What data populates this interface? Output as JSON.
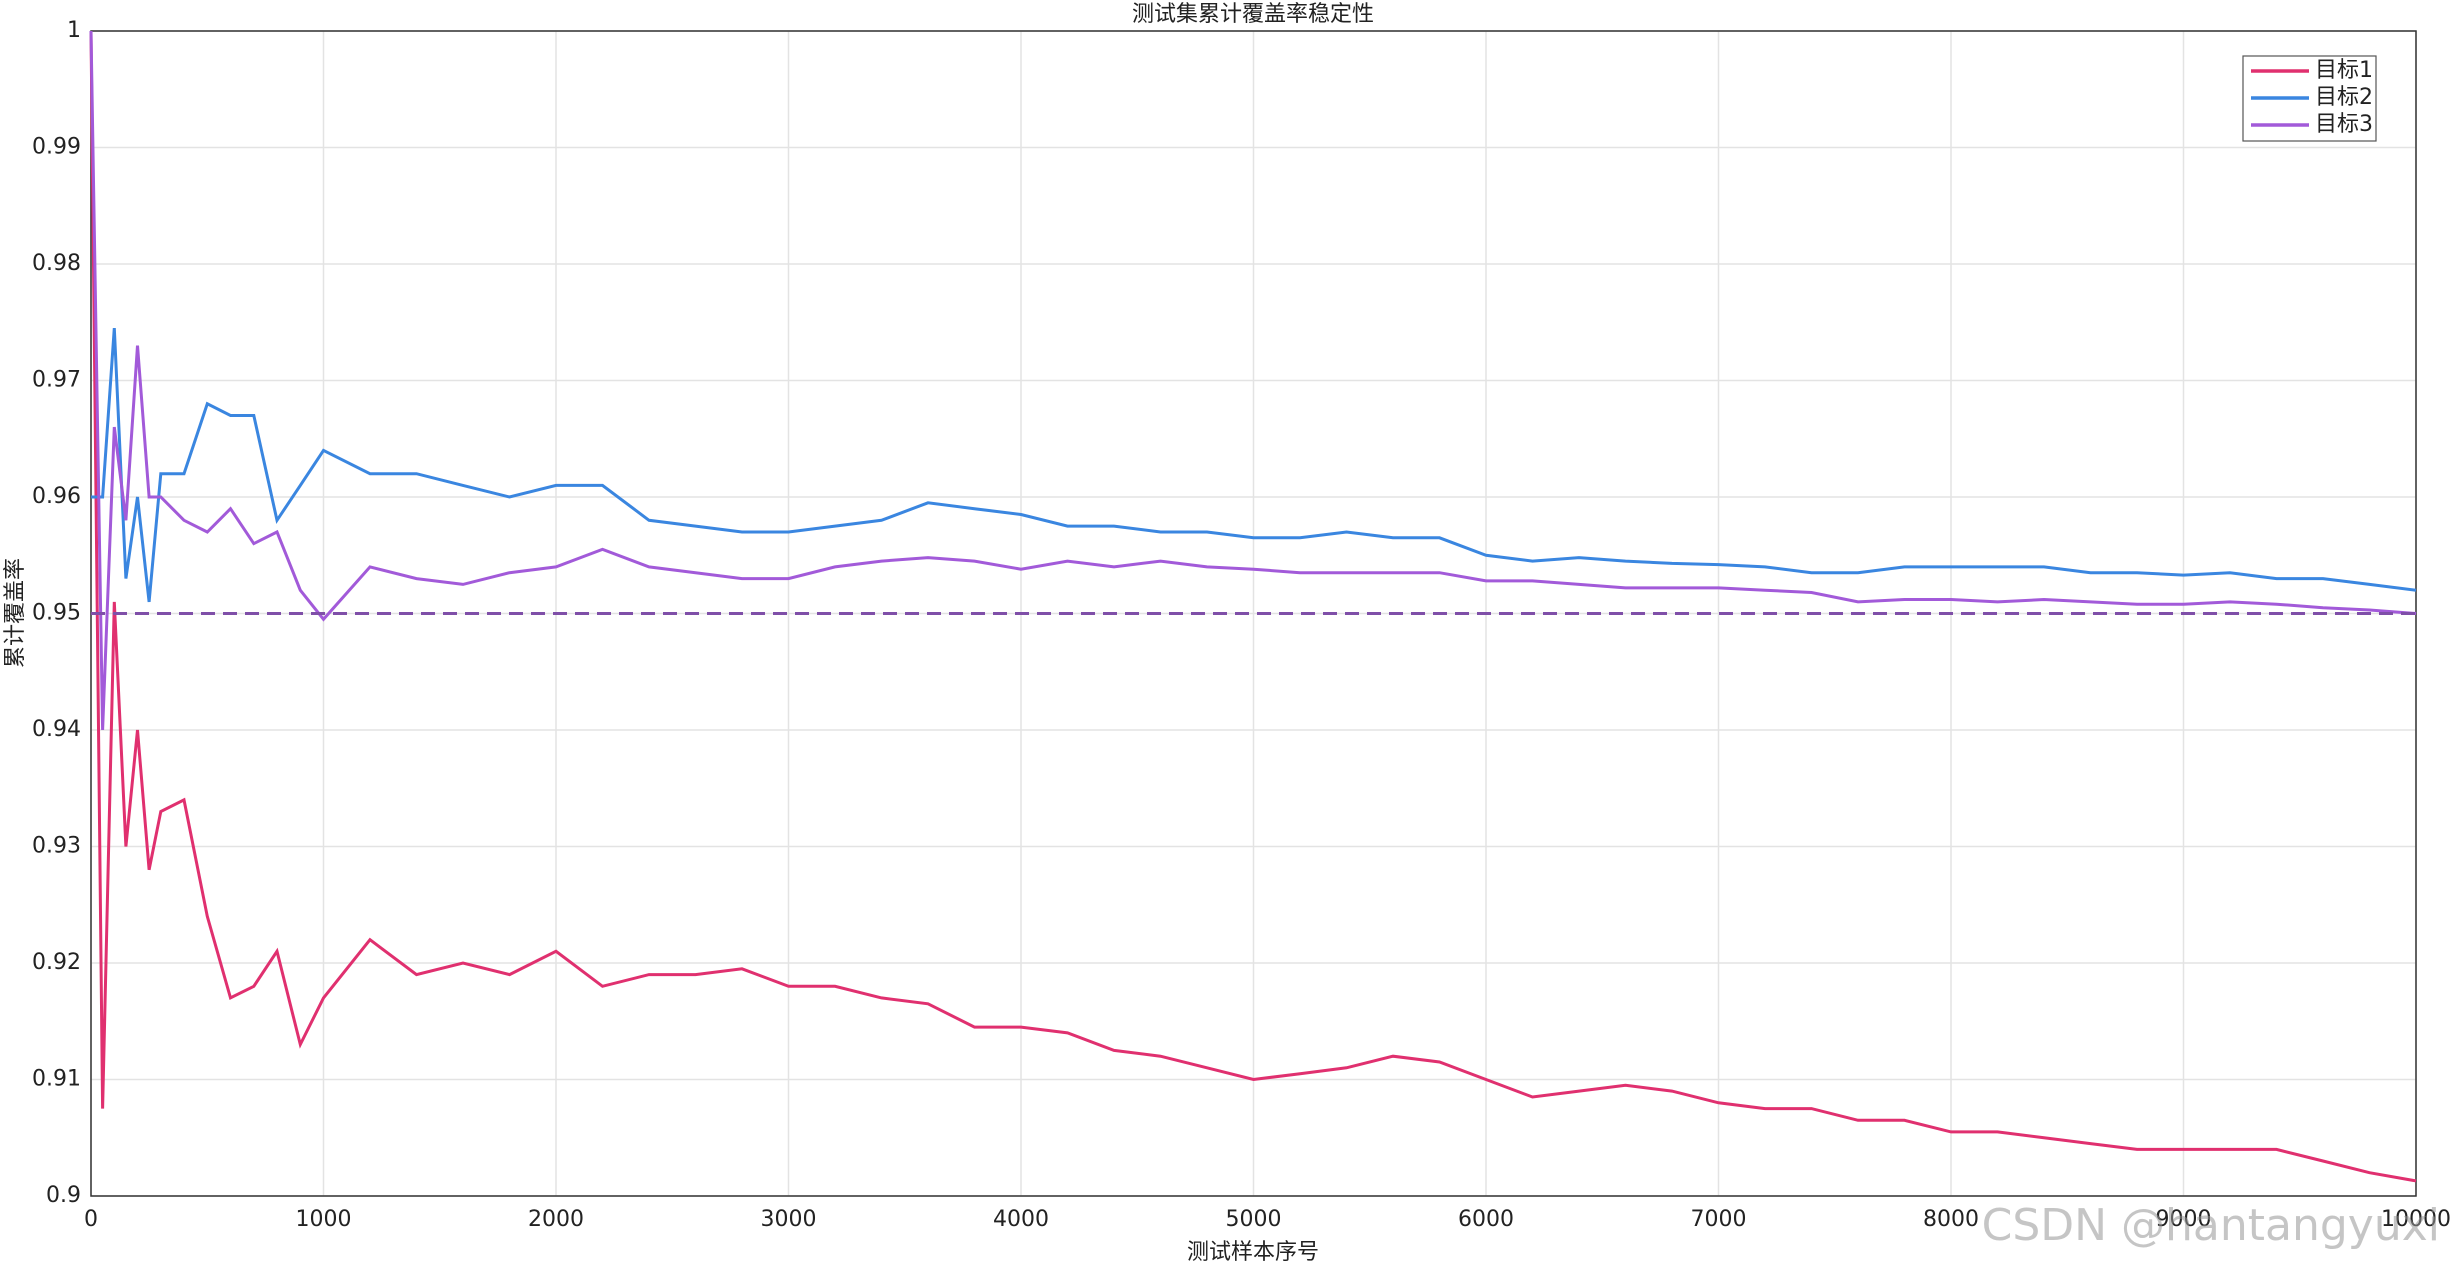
{
  "chart_data": {
    "type": "line",
    "title": "测试集累计覆盖率稳定性",
    "xlabel": "测试样本序号",
    "ylabel": "累计覆盖率",
    "x": [
      0,
      50,
      100,
      150,
      200,
      250,
      300,
      400,
      500,
      600,
      700,
      800,
      900,
      1000,
      1200,
      1400,
      1600,
      1800,
      2000,
      2200,
      2400,
      2600,
      2800,
      3000,
      3200,
      3400,
      3600,
      3800,
      4000,
      4200,
      4400,
      4600,
      4800,
      5000,
      5200,
      5400,
      5600,
      5800,
      6000,
      6200,
      6400,
      6600,
      6800,
      7000,
      7200,
      7400,
      7600,
      7800,
      8000,
      8200,
      8400,
      8600,
      8800,
      9000,
      9200,
      9400,
      9600,
      9800,
      10000
    ],
    "series": [
      {
        "name": "目标1",
        "color": "#e0306f",
        "values": [
          1,
          0.9075,
          0.951,
          0.93,
          0.94,
          0.928,
          0.933,
          0.934,
          0.924,
          0.917,
          0.918,
          0.921,
          0.913,
          0.917,
          0.922,
          0.919,
          0.92,
          0.919,
          0.921,
          0.918,
          0.919,
          0.919,
          0.9195,
          0.918,
          0.918,
          0.917,
          0.9165,
          0.9145,
          0.9145,
          0.914,
          0.9125,
          0.912,
          0.911,
          0.91,
          0.9105,
          0.911,
          0.912,
          0.9115,
          0.91,
          0.9085,
          0.909,
          0.9095,
          0.909,
          0.908,
          0.9075,
          0.9075,
          0.9065,
          0.9065,
          0.9055,
          0.9055,
          0.905,
          0.9045,
          0.904,
          0.904,
          0.904,
          0.904,
          0.903,
          0.902,
          0.9013
        ]
      },
      {
        "name": "目标2",
        "color": "#3a86e0",
        "values": [
          0.96,
          0.96,
          0.9745,
          0.953,
          0.96,
          0.951,
          0.962,
          0.962,
          0.968,
          0.967,
          0.967,
          0.958,
          0.961,
          0.964,
          0.962,
          0.962,
          0.961,
          0.96,
          0.961,
          0.961,
          0.958,
          0.9575,
          0.957,
          0.957,
          0.9575,
          0.958,
          0.9595,
          0.959,
          0.9585,
          0.9575,
          0.9575,
          0.957,
          0.957,
          0.9565,
          0.9565,
          0.957,
          0.9565,
          0.9565,
          0.955,
          0.9545,
          0.9548,
          0.9545,
          0.9543,
          0.9542,
          0.954,
          0.9535,
          0.9535,
          0.954,
          0.954,
          0.954,
          0.954,
          0.9535,
          0.9535,
          0.9533,
          0.9535,
          0.953,
          0.953,
          0.9525,
          0.952
        ]
      },
      {
        "name": "目标3",
        "color": "#a25ad9",
        "values": [
          1,
          0.94,
          0.966,
          0.958,
          0.973,
          0.96,
          0.96,
          0.958,
          0.957,
          0.959,
          0.956,
          0.957,
          0.952,
          0.9495,
          0.954,
          0.953,
          0.9525,
          0.9535,
          0.954,
          0.9555,
          0.954,
          0.9535,
          0.953,
          0.953,
          0.954,
          0.9545,
          0.9548,
          0.9545,
          0.9538,
          0.9545,
          0.954,
          0.9545,
          0.954,
          0.9538,
          0.9535,
          0.9535,
          0.9535,
          0.9535,
          0.9528,
          0.9528,
          0.9525,
          0.9522,
          0.9522,
          0.9522,
          0.952,
          0.9518,
          0.951,
          0.9512,
          0.9512,
          0.951,
          0.9512,
          0.951,
          0.9508,
          0.9508,
          0.951,
          0.9508,
          0.9505,
          0.9503,
          0.95
        ]
      }
    ],
    "reference_line": 0.95,
    "reference_color": "#7f4fa8",
    "xlim": [
      0,
      10000
    ],
    "xticks": [
      0,
      1000,
      2000,
      3000,
      4000,
      5000,
      6000,
      7000,
      8000,
      9000,
      10000
    ],
    "ylim": [
      0.9,
      1
    ],
    "yticks": [
      0.9,
      0.91,
      0.92,
      0.93,
      0.94,
      0.95,
      0.96,
      0.97,
      0.98,
      0.99,
      1
    ],
    "grid": true,
    "legend": "top-right",
    "watermark": "CSDN @hantangyuxi"
  }
}
